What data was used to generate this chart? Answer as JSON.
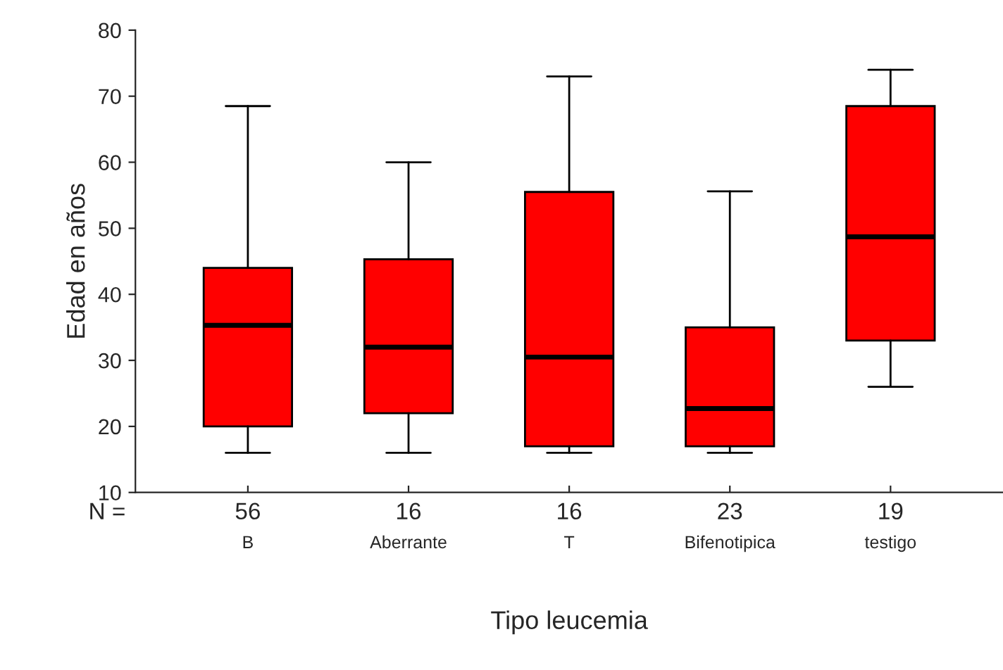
{
  "chart_data": {
    "type": "box",
    "xlabel": "Tipo leucemia",
    "ylabel": "Edad en años",
    "categories": [
      "B",
      "Aberrante",
      "T",
      "Bifenotipica",
      "testigo"
    ],
    "color": "#ff0000",
    "boxes": [
      {
        "low": 16,
        "q1": 20,
        "median": 35.3,
        "q3": 44,
        "high": 68.5
      },
      {
        "low": 16,
        "q1": 22,
        "median": 32,
        "q3": 45.3,
        "high": 60
      },
      {
        "low": 16,
        "q1": 17,
        "median": 30.5,
        "q3": 55.5,
        "high": 73
      },
      {
        "low": 16,
        "q1": 17,
        "median": 22.7,
        "q3": 35,
        "high": 55.6
      },
      {
        "low": 26,
        "q1": 33,
        "median": 48.7,
        "q3": 68.5,
        "high": 74
      }
    ],
    "ylim": [
      10,
      80
    ],
    "yticks": [
      10,
      20,
      30,
      40,
      50,
      60,
      70,
      80
    ],
    "grid": false,
    "annotations": [
      "N =",
      "56",
      "16",
      "16",
      "23",
      "19"
    ]
  }
}
